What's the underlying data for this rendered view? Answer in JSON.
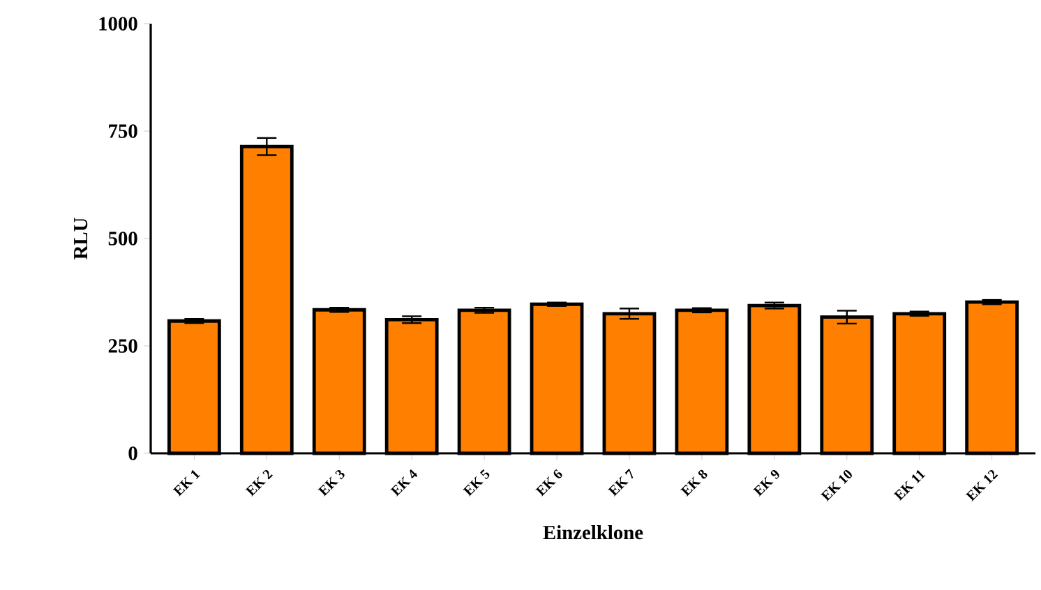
{
  "chart_data": {
    "type": "bar",
    "xlabel": "Einzelklone",
    "ylabel": "RLU",
    "categories": [
      "EK 1",
      "EK 2",
      "EK 3",
      "EK 4",
      "EK 5",
      "EK 6",
      "EK 7",
      "EK 8",
      "EK 9",
      "EK 10",
      "EK 11",
      "EK 12"
    ],
    "values": [
      308,
      714,
      334,
      311,
      333,
      347,
      325,
      333,
      344,
      317,
      325,
      352
    ],
    "errors": [
      5,
      20,
      5,
      8,
      6,
      4,
      12,
      5,
      7,
      15,
      5,
      5
    ],
    "color": "#ff8000",
    "ylim": [
      0,
      1000
    ],
    "yticks": [
      0,
      250,
      500,
      750,
      1000
    ],
    "grid": false
  }
}
